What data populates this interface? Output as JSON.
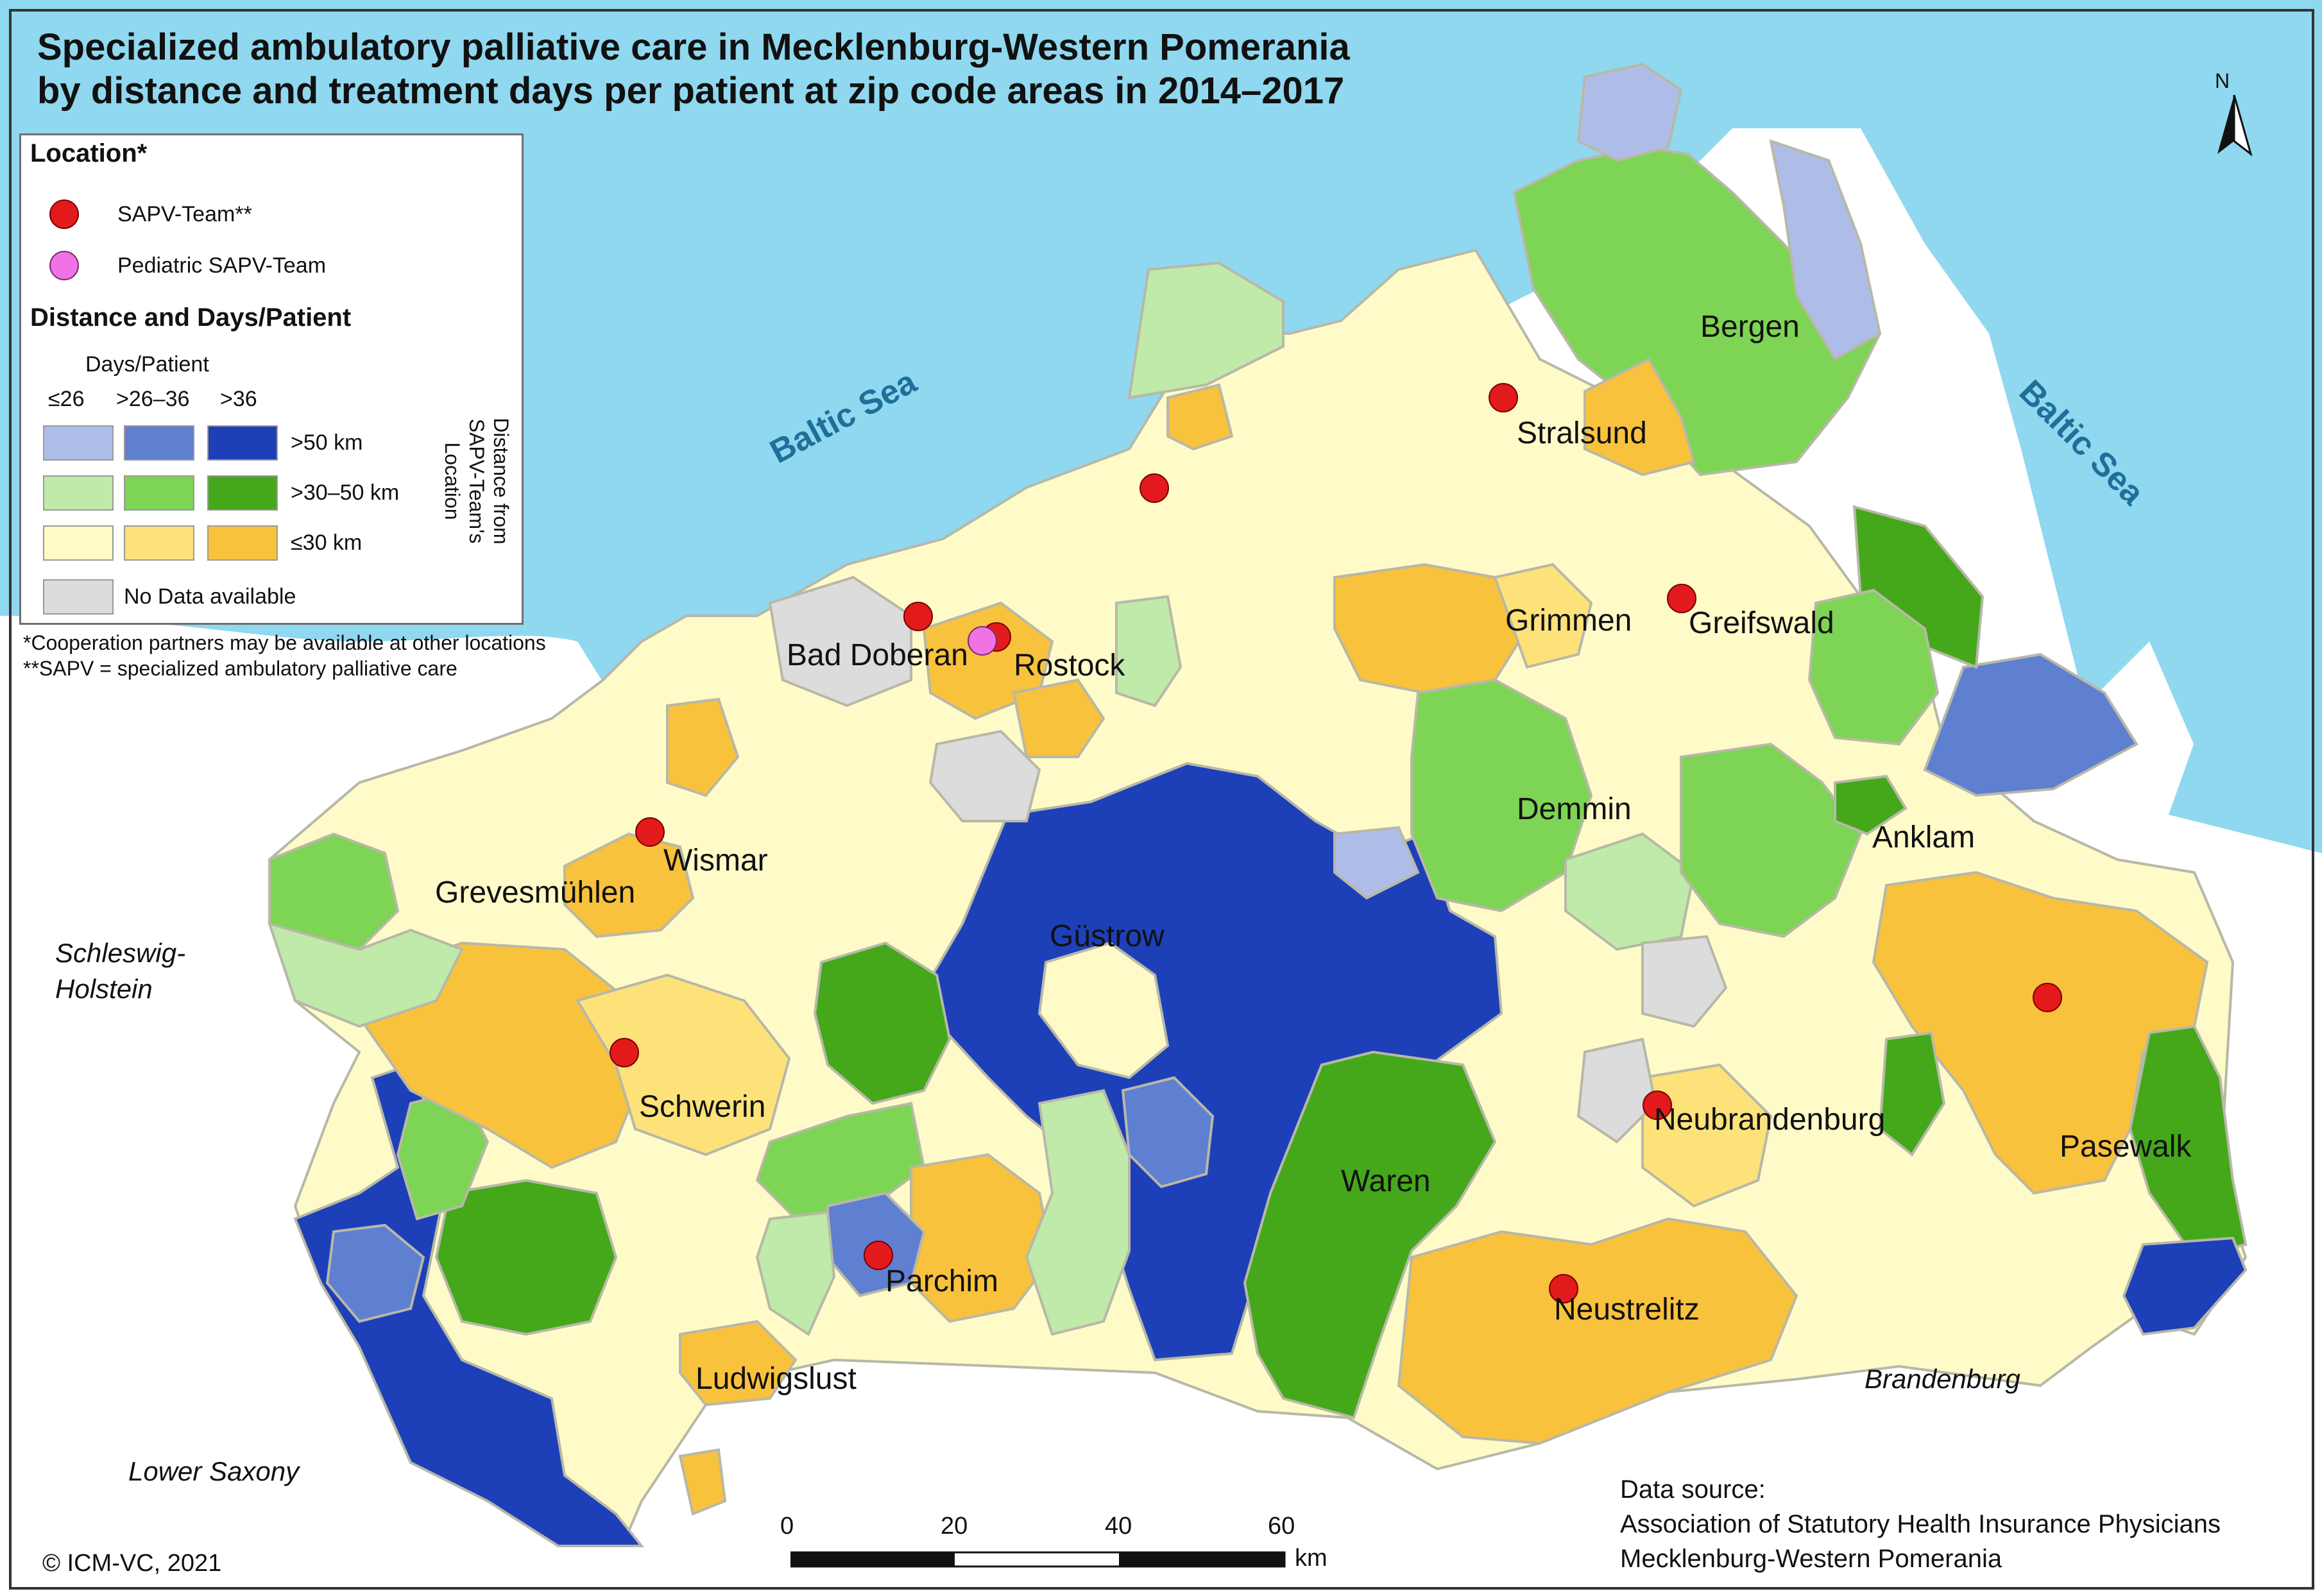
{
  "title": {
    "line1": "Specialized ambulatory palliative care in Mecklenburg-Western Pomerania",
    "line2": "by distance and treatment days per patient at zip code areas in 2014–2017"
  },
  "legend": {
    "location_heading": "Location*",
    "sapv_team": "SAPV-Team**",
    "pediatric_team": "Pediatric SAPV-Team",
    "distance_heading": "Distance and Days/Patient",
    "days_label": "Days/Patient",
    "days_cols": [
      "≤26",
      ">26–36",
      ">36"
    ],
    "distance_rows": [
      ">50 km",
      ">30–50 km",
      "≤30 km"
    ],
    "distance_axis": "Distance from SAPV-Team's Location",
    "no_data": "No Data available",
    "colors": {
      "far": [
        "#aebde8",
        "#5f7fd1",
        "#1d40b8"
      ],
      "mid": [
        "#bfeaa9",
        "#7ed454",
        "#44a81a"
      ],
      "near": [
        "#fefbc8",
        "#fde27a",
        "#f9c23c"
      ],
      "no_data": "#dcdcdc",
      "sea": "#8fd8ef"
    }
  },
  "notes": {
    "cooperation": "*Cooperation partners may be available at other locations",
    "sapv_def": "**SAPV = specialized ambulatory palliative care"
  },
  "cities": [
    {
      "name": "Bergen"
    },
    {
      "name": "Stralsund"
    },
    {
      "name": "Grimmen"
    },
    {
      "name": "Greifswald"
    },
    {
      "name": "Bad Doberan"
    },
    {
      "name": "Rostock"
    },
    {
      "name": "Demmin"
    },
    {
      "name": "Anklam"
    },
    {
      "name": "Wismar"
    },
    {
      "name": "Grevesmühlen"
    },
    {
      "name": "Güstrow"
    },
    {
      "name": "Schwerin"
    },
    {
      "name": "Neubrandenburg"
    },
    {
      "name": "Pasewalk"
    },
    {
      "name": "Waren"
    },
    {
      "name": "Parchim"
    },
    {
      "name": "Neustrelitz"
    },
    {
      "name": "Ludwigslust"
    }
  ],
  "regions": {
    "schleswig_holstein": [
      "Schleswig-",
      "Holstein"
    ],
    "lower_saxony": "Lower Saxony",
    "brandenburg": "Brandenburg",
    "baltic_sea": "Baltic Sea"
  },
  "north_label": "N",
  "scale": {
    "ticks": [
      "0",
      "20",
      "40",
      "60"
    ],
    "unit": "km"
  },
  "copyright": "© ICM-VC, 2021",
  "source": {
    "label": "Data source:",
    "line1": "Association of Statutory Health Insurance Physicians",
    "line2": "Mecklenburg-Western Pomerania"
  }
}
